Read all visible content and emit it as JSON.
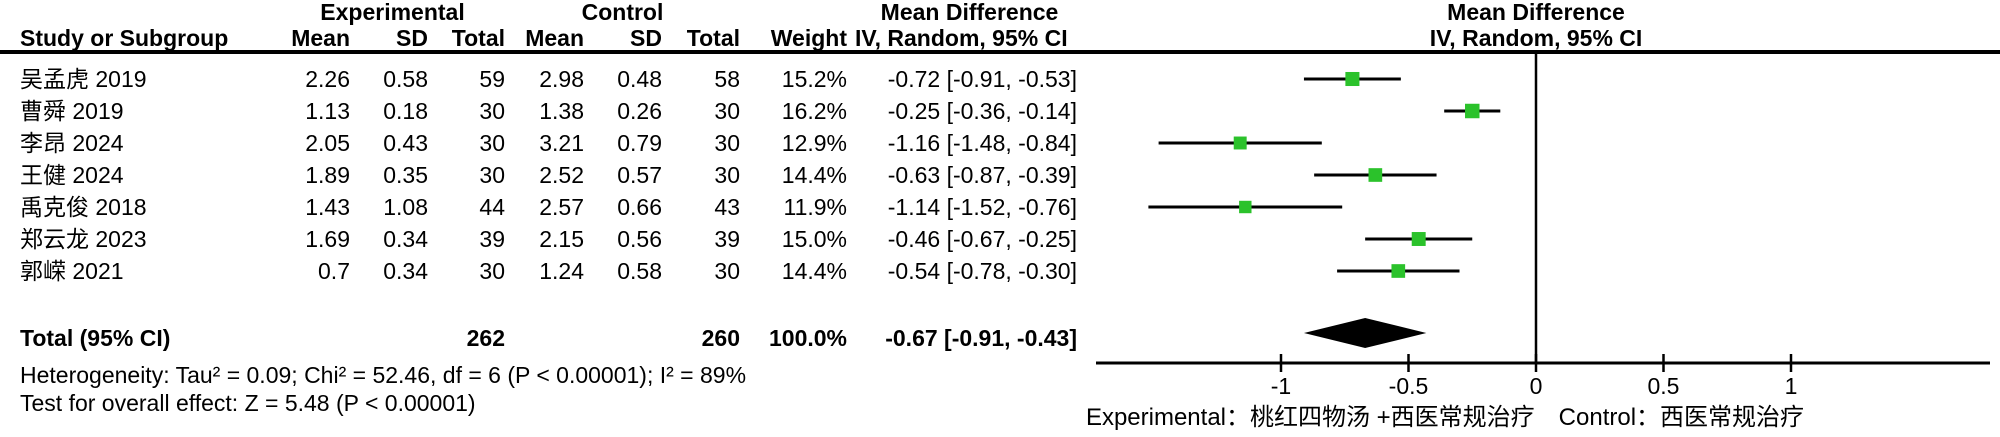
{
  "table": {
    "group_headers": {
      "experimental": "Experimental",
      "control": "Control",
      "mean_difference": "Mean Difference"
    },
    "columns": [
      "Study or Subgroup",
      "Mean",
      "SD",
      "Total",
      "Mean",
      "SD",
      "Total",
      "Weight",
      "IV, Random, 95% CI"
    ]
  },
  "chart_data": {
    "type": "forest",
    "effect_label": "Mean Difference",
    "method_label": "IV, Random, 95% CI",
    "marker_color": "#2bc22b",
    "ci_color": "#000000",
    "axis": {
      "ticks": [
        -1,
        -0.5,
        0,
        0.5,
        1
      ],
      "tick_labels": [
        "-1",
        "-0.5",
        "0",
        "0.5",
        "1"
      ],
      "range": [
        -1.73,
        1.78
      ],
      "zero_line": 0
    },
    "studies": [
      {
        "name": "吴孟虎 2019",
        "exp_mean": "2.26",
        "exp_sd": "0.58",
        "exp_total": "59",
        "ctl_mean": "2.98",
        "ctl_sd": "0.48",
        "ctl_total": "58",
        "weight": "15.2%",
        "weight_value": 15.2,
        "md_ci": "-0.72 [-0.91, -0.53]",
        "md": -0.72,
        "ci_low": -0.91,
        "ci_high": -0.53
      },
      {
        "name": "曹舜 2019",
        "exp_mean": "1.13",
        "exp_sd": "0.18",
        "exp_total": "30",
        "ctl_mean": "1.38",
        "ctl_sd": "0.26",
        "ctl_total": "30",
        "weight": "16.2%",
        "weight_value": 16.2,
        "md_ci": "-0.25 [-0.36, -0.14]",
        "md": -0.25,
        "ci_low": -0.36,
        "ci_high": -0.14
      },
      {
        "name": "李昂 2024",
        "exp_mean": "2.05",
        "exp_sd": "0.43",
        "exp_total": "30",
        "ctl_mean": "3.21",
        "ctl_sd": "0.79",
        "ctl_total": "30",
        "weight": "12.9%",
        "weight_value": 12.9,
        "md_ci": "-1.16 [-1.48, -0.84]",
        "md": -1.16,
        "ci_low": -1.48,
        "ci_high": -0.84
      },
      {
        "name": "王健 2024",
        "exp_mean": "1.89",
        "exp_sd": "0.35",
        "exp_total": "30",
        "ctl_mean": "2.52",
        "ctl_sd": "0.57",
        "ctl_total": "30",
        "weight": "14.4%",
        "weight_value": 14.4,
        "md_ci": "-0.63 [-0.87, -0.39]",
        "md": -0.63,
        "ci_low": -0.87,
        "ci_high": -0.39
      },
      {
        "name": "禹克俊 2018",
        "exp_mean": "1.43",
        "exp_sd": "1.08",
        "exp_total": "44",
        "ctl_mean": "2.57",
        "ctl_sd": "0.66",
        "ctl_total": "43",
        "weight": "11.9%",
        "weight_value": 11.9,
        "md_ci": "-1.14 [-1.52, -0.76]",
        "md": -1.14,
        "ci_low": -1.52,
        "ci_high": -0.76
      },
      {
        "name": "郑云龙 2023",
        "exp_mean": "1.69",
        "exp_sd": "0.34",
        "exp_total": "39",
        "ctl_mean": "2.15",
        "ctl_sd": "0.56",
        "ctl_total": "39",
        "weight": "15.0%",
        "weight_value": 15.0,
        "md_ci": "-0.46 [-0.67, -0.25]",
        "md": -0.46,
        "ci_low": -0.67,
        "ci_high": -0.25
      },
      {
        "name": "郭嵘 2021",
        "exp_mean": "0.7",
        "exp_sd": "0.34",
        "exp_total": "30",
        "ctl_mean": "1.24",
        "ctl_sd": "0.58",
        "ctl_total": "30",
        "weight": "14.4%",
        "weight_value": 14.4,
        "md_ci": "-0.54 [-0.78, -0.30]",
        "md": -0.54,
        "ci_low": -0.78,
        "ci_high": -0.3
      }
    ],
    "total": {
      "label": "Total (95% CI)",
      "exp_total": "262",
      "ctl_total": "260",
      "weight": "100.0%",
      "md_ci": "-0.67 [-0.91, -0.43]",
      "md": -0.67,
      "ci_low": -0.91,
      "ci_high": -0.43
    },
    "heterogeneity": "Heterogeneity: Tau² = 0.09; Chi² = 52.46, df = 6 (P < 0.00001); I² = 89%",
    "overall_effect": "Test for overall effect: Z = 5.48 (P < 0.00001)",
    "footnote": "Experimental：桃红四物汤 +西医常规治疗　Control：西医常规治疗"
  }
}
